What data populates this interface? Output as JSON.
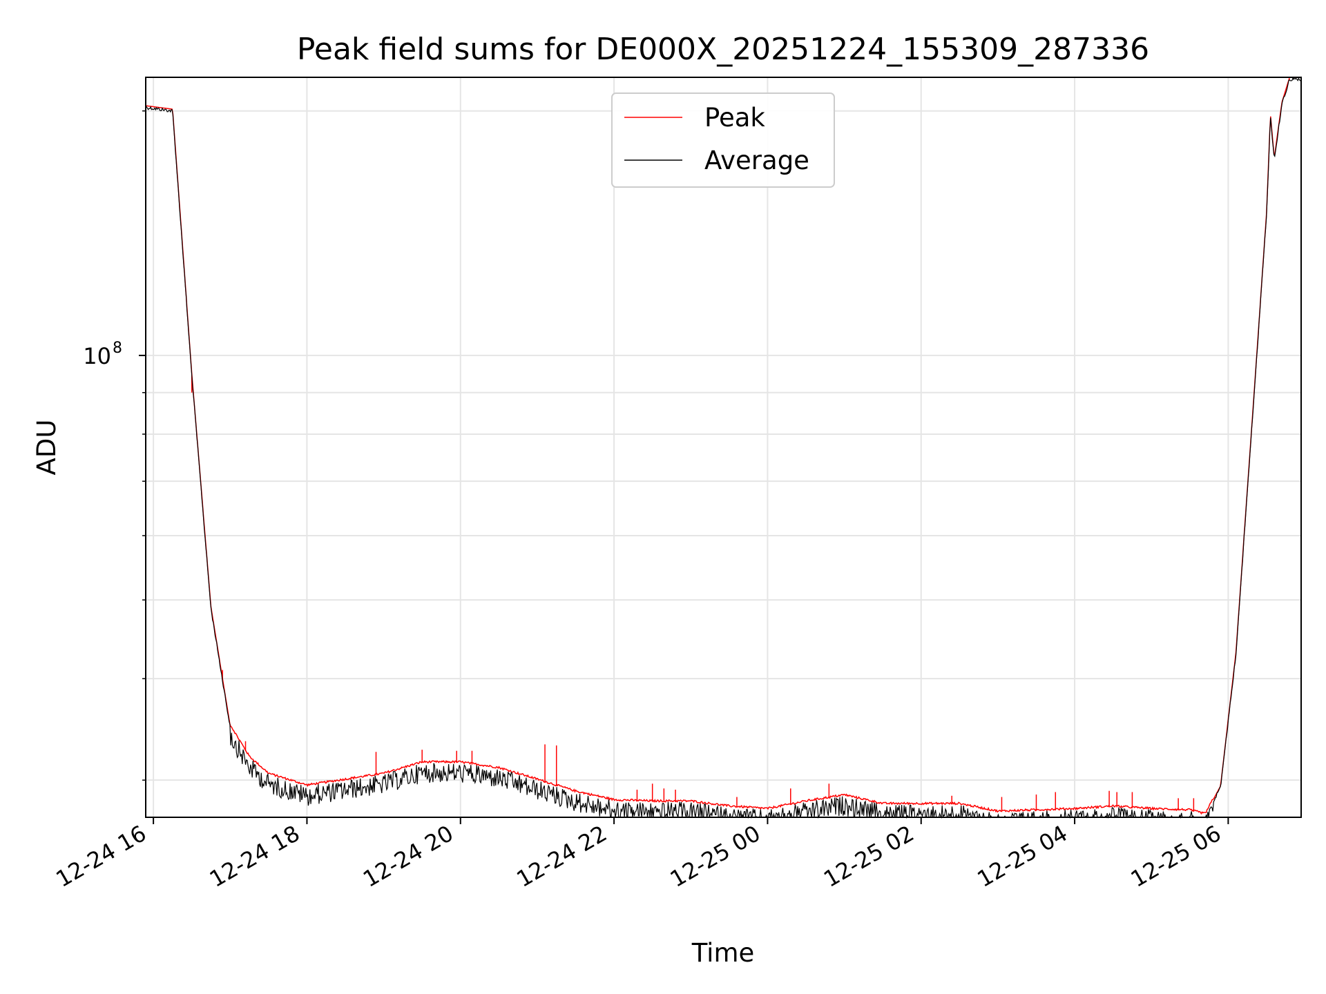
{
  "chart_data": {
    "type": "line",
    "title": "Peak field sums for DE000X_20251224_155309_287336",
    "xlabel": "Time",
    "ylabel": "ADU",
    "yscale": "log",
    "ylim": [
      27000000,
      220000000
    ],
    "xlim_hours": [
      15.9,
      30.95
    ],
    "grid": true,
    "legend_position": "top-center",
    "x_ticks": [
      {
        "hours": 16,
        "label": "12-24 16"
      },
      {
        "hours": 18,
        "label": "12-24 18"
      },
      {
        "hours": 20,
        "label": "12-24 20"
      },
      {
        "hours": 22,
        "label": "12-24 22"
      },
      {
        "hours": 24,
        "label": "12-25 00"
      },
      {
        "hours": 26,
        "label": "12-25 02"
      },
      {
        "hours": 28,
        "label": "12-25 04"
      },
      {
        "hours": 30,
        "label": "12-25 06"
      }
    ],
    "y_major_ticks": [
      {
        "value": 100000000,
        "base": "10",
        "exp": "8"
      }
    ],
    "y_minor_ticks": [
      30000000,
      40000000,
      50000000,
      60000000,
      70000000,
      80000000,
      90000000,
      200000000
    ],
    "series": [
      {
        "name": "Peak",
        "color": "#ff0000"
      },
      {
        "name": "Average",
        "color": "#000000"
      }
    ],
    "trend_hours": [
      15.9,
      16.25,
      16.5,
      16.75,
      17.0,
      17.25,
      17.5,
      18.0,
      18.5,
      19.0,
      19.5,
      20.0,
      20.5,
      21.0,
      21.5,
      22.0,
      22.5,
      23.0,
      23.5,
      24.0,
      24.5,
      25.0,
      25.5,
      26.0,
      26.5,
      27.0,
      27.5,
      28.0,
      28.5,
      29.0,
      29.5,
      29.7,
      29.9,
      30.1,
      30.3,
      30.5,
      30.55,
      30.6,
      30.7,
      30.8,
      30.95
    ],
    "trend_values": [
      203000000,
      201000000,
      95000000,
      49000000,
      35000000,
      32000000,
      30500000,
      29500000,
      30000000,
      30500000,
      31500000,
      31500000,
      31000000,
      30000000,
      29000000,
      28300000,
      28200000,
      28200000,
      27800000,
      27600000,
      28200000,
      28700000,
      28000000,
      28000000,
      28000000,
      27400000,
      27500000,
      27600000,
      27800000,
      27600000,
      27500000,
      27200000,
      29500000,
      43000000,
      80000000,
      150000000,
      198000000,
      175000000,
      205000000,
      220000000,
      220000000
    ],
    "peak_spikes": [
      {
        "hours": 16.5,
        "value": 90000000
      },
      {
        "hours": 16.9,
        "value": 41000000
      },
      {
        "hours": 17.2,
        "value": 33500000
      },
      {
        "hours": 18.9,
        "value": 32500000
      },
      {
        "hours": 19.5,
        "value": 32700000
      },
      {
        "hours": 19.95,
        "value": 32600000
      },
      {
        "hours": 20.15,
        "value": 32600000
      },
      {
        "hours": 21.1,
        "value": 33200000
      },
      {
        "hours": 21.25,
        "value": 33100000
      },
      {
        "hours": 22.3,
        "value": 29200000
      },
      {
        "hours": 22.5,
        "value": 29700000
      },
      {
        "hours": 22.65,
        "value": 29300000
      },
      {
        "hours": 22.8,
        "value": 29200000
      },
      {
        "hours": 23.6,
        "value": 28600000
      },
      {
        "hours": 24.3,
        "value": 29300000
      },
      {
        "hours": 24.8,
        "value": 29700000
      },
      {
        "hours": 26.4,
        "value": 28700000
      },
      {
        "hours": 27.05,
        "value": 28600000
      },
      {
        "hours": 27.5,
        "value": 28800000
      },
      {
        "hours": 27.75,
        "value": 29000000
      },
      {
        "hours": 28.45,
        "value": 29100000
      },
      {
        "hours": 28.55,
        "value": 29000000
      },
      {
        "hours": 28.75,
        "value": 29000000
      },
      {
        "hours": 29.35,
        "value": 28500000
      },
      {
        "hours": 29.55,
        "value": 28500000
      }
    ]
  }
}
